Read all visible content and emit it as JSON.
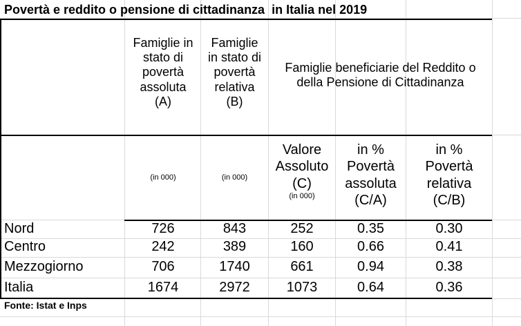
{
  "title": "Povertà e reddito o pensione di cittadinanza  in Italia nel 2019",
  "headers": {
    "col_a": [
      "Famiglie in",
      "stato di",
      "povertà",
      "assoluta",
      "(A)"
    ],
    "col_b": [
      "Famiglie",
      "in stato di",
      "povertà",
      "relativa",
      "(B)"
    ],
    "group": [
      "Famiglie beneficiarie del Reddito o",
      "della Pensione di Cittadinanza"
    ],
    "unit_a": "(in 000)",
    "unit_b": "(in 000)",
    "col_c": [
      "Valore",
      "Assoluto",
      "(C)"
    ],
    "unit_c": "(in 000)",
    "col_ca": [
      "in  %",
      "Povertà",
      "assoluta",
      "(C/A)"
    ],
    "col_cb": [
      "in  %",
      "Povertà",
      "relativa",
      "(C/B)"
    ]
  },
  "rows": [
    {
      "label": "Nord",
      "a": "726",
      "b": "843",
      "c": "252",
      "ca": "0.35",
      "cb": "0.30"
    },
    {
      "label": "Centro",
      "a": "242",
      "b": "389",
      "c": "160",
      "ca": "0.66",
      "cb": "0.41"
    },
    {
      "label": "Mezzogiorno",
      "a": "706",
      "b": "1740",
      "c": "661",
      "ca": "0.94",
      "cb": "0.38"
    },
    {
      "label": "Italia",
      "a": "1674",
      "b": "2972",
      "c": "1073",
      "ca": "0.64",
      "cb": "0.36"
    }
  ],
  "source": "Fonte: Istat e Inps"
}
